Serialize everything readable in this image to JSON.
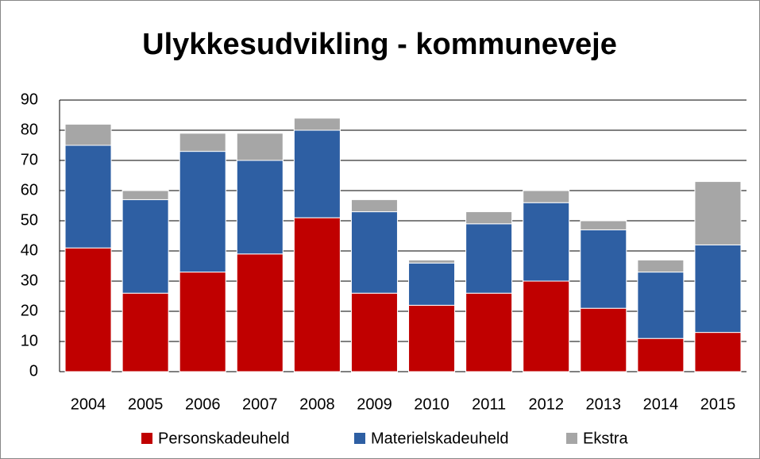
{
  "chart_data": {
    "type": "stacked_bar",
    "title": "Ulykkesudvikling - kommuneveje",
    "categories": [
      "2004",
      "2005",
      "2006",
      "2007",
      "2008",
      "2009",
      "2010",
      "2011",
      "2012",
      "2013",
      "2014",
      "2015"
    ],
    "series": [
      {
        "name": "Personskadeuheld",
        "color": "#c00000",
        "values": [
          41,
          26,
          33,
          39,
          51,
          26,
          22,
          26,
          30,
          21,
          11,
          13
        ]
      },
      {
        "name": "Materielskadeuheld",
        "color": "#2e5fa3",
        "values": [
          34,
          31,
          40,
          31,
          29,
          27,
          14,
          23,
          26,
          26,
          22,
          29
        ]
      },
      {
        "name": "Ekstra",
        "color": "#a6a6a6",
        "values": [
          7,
          3,
          6,
          9,
          4,
          4,
          1,
          4,
          4,
          3,
          4,
          21
        ]
      }
    ],
    "ylim": [
      0,
      90
    ],
    "yticks": [
      0,
      10,
      20,
      30,
      40,
      50,
      60,
      70,
      80,
      90
    ],
    "grid": true,
    "legend": "bottom"
  }
}
